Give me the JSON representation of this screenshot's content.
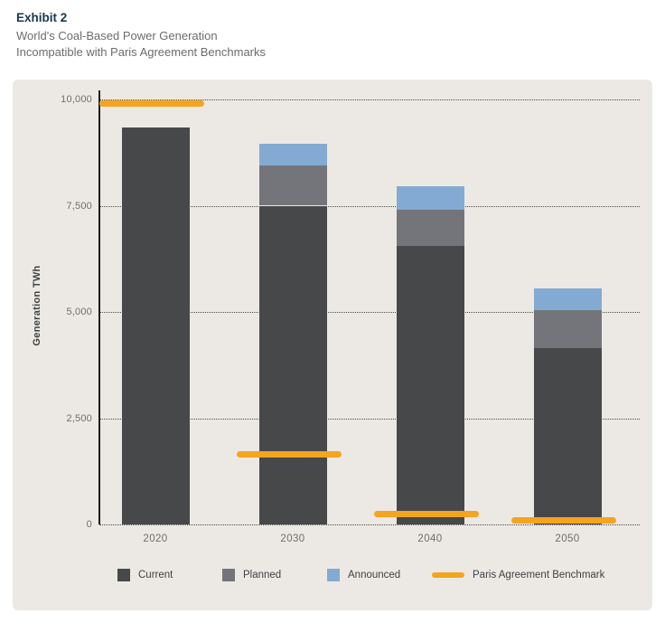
{
  "header": {
    "exhibit_label": "Exhibit 2",
    "title_line1": "World's Coal-Based Power Generation",
    "title_line2": "Incompatible with Paris Agreement Benchmarks"
  },
  "chart_data": {
    "type": "bar",
    "stacked": true,
    "title": "World's Coal-Based Power Generation Incompatible with Paris Agreement Benchmarks",
    "xlabel": "",
    "ylabel": "Generation TWh",
    "ylim": [
      0,
      10000
    ],
    "yticks": [
      0,
      2500,
      5000,
      7500,
      10000
    ],
    "ytick_labels": [
      "0",
      "2,500",
      "5,000",
      "7,500",
      "10,000"
    ],
    "grid": "dotted-horizontal",
    "legend_position": "bottom",
    "categories": [
      "2020",
      "2030",
      "2040",
      "2050"
    ],
    "series": [
      {
        "name": "Current",
        "color": "#47484a",
        "values": [
          9350,
          7500,
          6550,
          4150
        ]
      },
      {
        "name": "Planned",
        "color": "#74757a",
        "values": [
          0,
          950,
          850,
          900
        ]
      },
      {
        "name": "Announced",
        "color": "#83aad2",
        "values": [
          0,
          500,
          550,
          500
        ]
      }
    ],
    "benchmark": {
      "name": "Paris Agreement Benchmark",
      "color": "#f5a41f",
      "values": [
        9900,
        1650,
        250,
        100
      ]
    }
  },
  "legend": {
    "items": [
      {
        "label": "Current",
        "swatch": "square",
        "color": "#47484a"
      },
      {
        "label": "Planned",
        "swatch": "square",
        "color": "#74757a"
      },
      {
        "label": "Announced",
        "swatch": "square",
        "color": "#83aad2"
      },
      {
        "label": "Paris Agreement Benchmark",
        "swatch": "line",
        "color": "#f5a41f"
      }
    ]
  },
  "colors": {
    "panel_bg": "#ece9e4",
    "title": "#16384c",
    "subtitle": "#6a6c6e",
    "axis_text": "#6d6e71",
    "grid": "#4b4b4b"
  }
}
